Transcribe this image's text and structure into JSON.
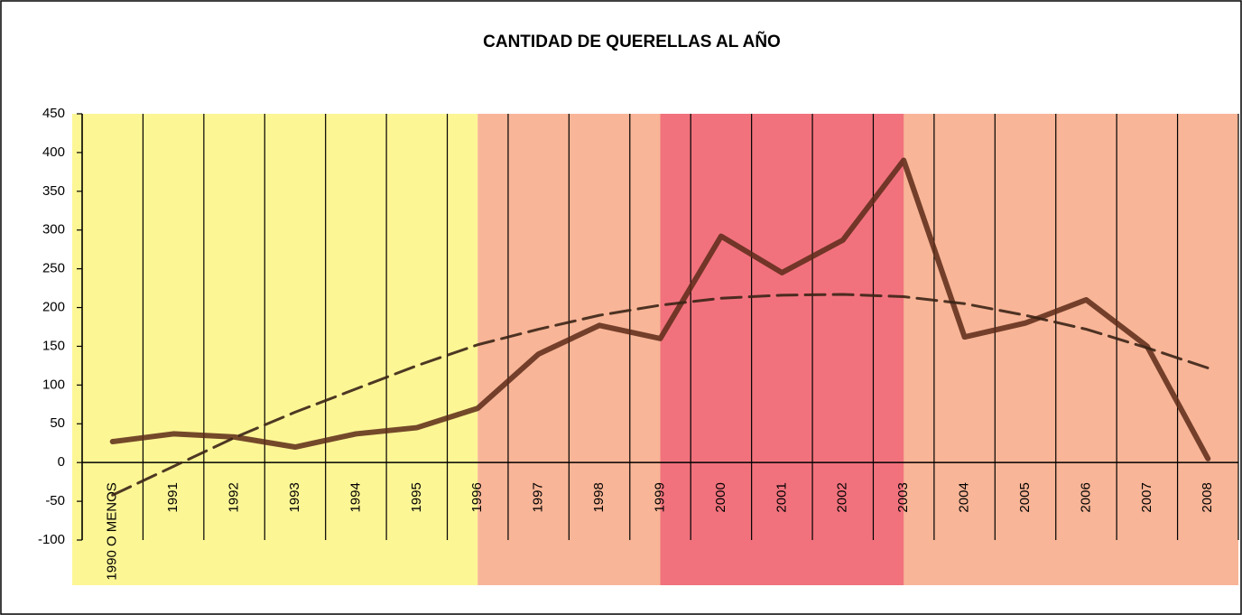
{
  "chart_data": {
    "type": "line",
    "title": "CANTIDAD DE QUERELLAS AL AÑO",
    "categories": [
      "1990 O MENOS",
      "1991",
      "1992",
      "1993",
      "1994",
      "1995",
      "1996",
      "1997",
      "1998",
      "1999",
      "2000",
      "2001",
      "2002",
      "2003",
      "2004",
      "2005",
      "2006",
      "2007",
      "2008"
    ],
    "series": [
      {
        "color": "#5c2a18",
        "style": "solid",
        "values": [
          27,
          37,
          33,
          20,
          37,
          45,
          70,
          140,
          177,
          160,
          292,
          245,
          287,
          390,
          162,
          180,
          210,
          150,
          5
        ]
      },
      {
        "color": "#3a2416",
        "style": "dashed",
        "values": [
          -42,
          -5,
          32,
          65,
          95,
          125,
          152,
          172,
          190,
          203,
          212,
          216,
          217,
          214,
          205,
          190,
          172,
          148,
          122
        ]
      }
    ],
    "ylim": [
      -100,
      450
    ],
    "yticks": [
      -100,
      -50,
      0,
      50,
      100,
      150,
      200,
      250,
      300,
      350,
      400,
      450
    ],
    "background_bands": [
      {
        "from": 0,
        "to": 6,
        "color": "#fdf58a"
      },
      {
        "from": 6,
        "to": 18,
        "color": "#f7ad8c"
      },
      {
        "from": 9,
        "to": 13,
        "color": "#f06a7a"
      }
    ]
  }
}
